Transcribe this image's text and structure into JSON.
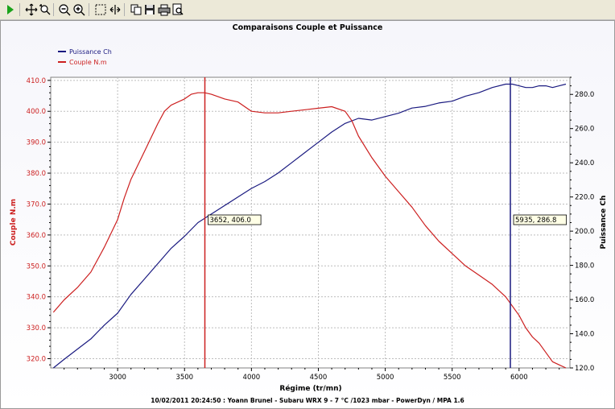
{
  "toolbar": {
    "buttons": [
      {
        "name": "run-icon"
      },
      {
        "name": "move-icon"
      },
      {
        "name": "zoom-pan-icon"
      },
      {
        "name": "zoom-out-icon"
      },
      {
        "name": "zoom-in-icon"
      },
      {
        "name": "select-icon"
      },
      {
        "name": "fit-icon"
      },
      {
        "name": "copy-icon"
      },
      {
        "name": "save-icon"
      },
      {
        "name": "print-icon"
      },
      {
        "name": "print-preview-icon"
      }
    ]
  },
  "chart_data": {
    "type": "line",
    "title": "Comparaisons Couple et Puissance",
    "footer": "10/02/2011 20:24:50 : Yoann Brunel - Subaru WRX 9 - 7 °C /1023 mbar - PowerDyn / MPA 1.6",
    "xlabel": "Régime (tr/mn)",
    "ylabel_left": "Couple N.m",
    "ylabel_right": "Puissance Ch",
    "xlim": [
      2500,
      6380
    ],
    "ylim_left": [
      317,
      411
    ],
    "ylim_right": [
      120,
      290
    ],
    "xticks": [
      3000,
      3500,
      4000,
      4500,
      5000,
      5500,
      6000
    ],
    "yticks_left": [
      320.0,
      330.0,
      340.0,
      350.0,
      360.0,
      370.0,
      380.0,
      390.0,
      400.0,
      410.0
    ],
    "yticks_right": [
      120.0,
      140.0,
      160.0,
      180.0,
      200.0,
      220.0,
      240.0,
      260.0,
      280.0
    ],
    "grid": true,
    "legend_position": "top-left",
    "series": [
      {
        "name": "Puissance Ch",
        "axis": "right",
        "color": "#1a1a80",
        "x": [
          2520,
          2600,
          2700,
          2800,
          2900,
          3000,
          3100,
          3200,
          3300,
          3400,
          3500,
          3600,
          3700,
          3800,
          3900,
          4000,
          4100,
          4200,
          4300,
          4400,
          4500,
          4600,
          4700,
          4800,
          4900,
          5000,
          5100,
          5200,
          5300,
          5400,
          5500,
          5600,
          5700,
          5800,
          5900,
          5950,
          6000,
          6050,
          6100,
          6150,
          6200,
          6250,
          6300,
          6350
        ],
        "y": [
          120,
          125,
          131,
          137,
          145,
          152,
          163,
          172,
          181,
          190,
          197,
          205,
          210,
          215,
          220,
          225,
          229,
          234,
          240,
          246,
          252,
          258,
          263,
          266,
          265,
          267,
          269,
          272,
          273,
          275,
          276,
          279,
          281,
          284,
          286,
          286,
          285,
          284,
          284,
          285,
          285,
          284,
          285,
          286
        ]
      },
      {
        "name": "Couple N.m",
        "axis": "left",
        "color": "#cc1f1f",
        "x": [
          2520,
          2600,
          2700,
          2800,
          2900,
          3000,
          3050,
          3100,
          3200,
          3300,
          3350,
          3400,
          3500,
          3550,
          3600,
          3650,
          3700,
          3800,
          3900,
          4000,
          4100,
          4200,
          4300,
          4400,
          4500,
          4600,
          4700,
          4750,
          4800,
          4900,
          5000,
          5100,
          5200,
          5300,
          5400,
          5500,
          5600,
          5700,
          5800,
          5900,
          6000,
          6050,
          6100,
          6150,
          6200,
          6250,
          6300,
          6350
        ],
        "y": [
          335,
          339,
          343,
          348,
          356,
          365,
          372,
          378,
          387,
          396,
          400,
          402,
          404,
          405.5,
          406,
          406,
          405.5,
          404,
          403,
          400,
          399.5,
          399.5,
          400,
          400.5,
          401,
          401.5,
          400,
          397,
          392,
          385,
          379,
          374,
          369,
          363,
          358,
          354,
          350,
          347,
          344,
          340,
          334,
          330,
          327,
          325,
          322,
          319,
          318,
          317
        ]
      }
    ],
    "markers": [
      {
        "axis": "left",
        "x": 3652,
        "color": "#cc1f1f",
        "label": "3652, 406.0"
      },
      {
        "axis": "right",
        "x": 5935,
        "color": "#1a1a80",
        "label": "5935, 286.8"
      }
    ]
  }
}
